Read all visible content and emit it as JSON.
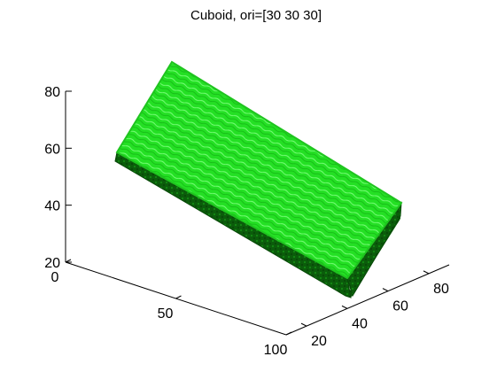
{
  "chart_data": {
    "type": "surface3d",
    "title": "Cuboid, ori=[30 30 30]",
    "xlabel": "",
    "ylabel": "",
    "zlabel": "",
    "grid": false,
    "axes": {
      "x": {
        "ticks": [
          0,
          50,
          100
        ],
        "range": [
          0,
          100
        ]
      },
      "y": {
        "ticks": [
          20,
          40,
          60,
          80
        ],
        "range": [
          10,
          90
        ]
      },
      "z": {
        "ticks": [
          20,
          40,
          60,
          80
        ],
        "range": [
          20,
          80
        ]
      }
    },
    "object": {
      "shape": "cuboid",
      "orientation": [
        30,
        30,
        30
      ],
      "top_color": "#22dd22",
      "side_color": "#0a5a0a",
      "edge_color": "#1b9e1b"
    }
  }
}
